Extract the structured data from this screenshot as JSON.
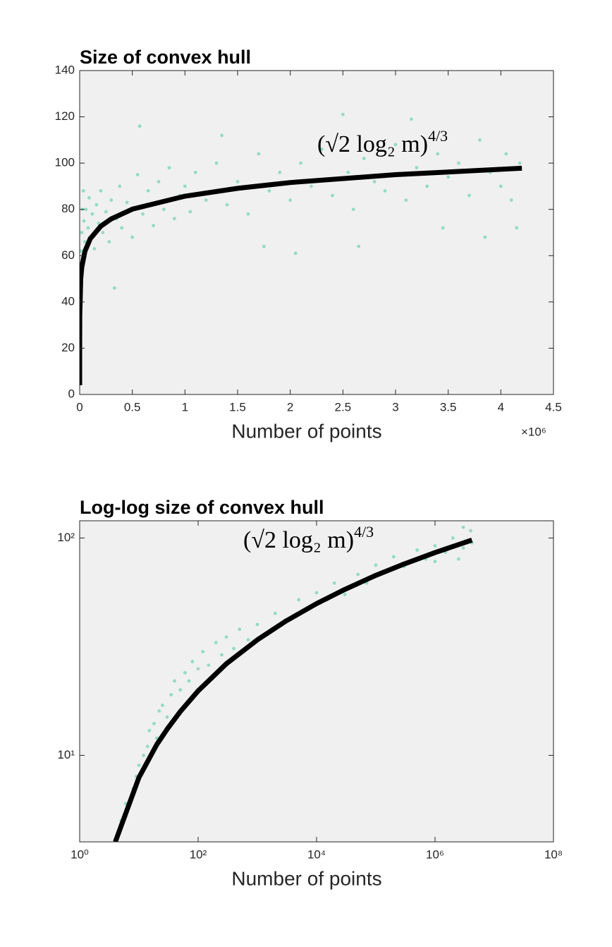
{
  "chart_data": [
    {
      "type": "scatter",
      "title": "Size of convex hull",
      "xlabel": "Number of points",
      "x_exponent_label": "×10⁶",
      "annotation": {
        "text": "(√2  log₂ m)",
        "superscript": "4/3"
      },
      "xlim": [
        0,
        4.5
      ],
      "xticks": [
        0,
        0.5,
        1,
        1.5,
        2,
        2.5,
        3,
        3.5,
        4,
        4.5
      ],
      "ylim": [
        0,
        140
      ],
      "yticks": [
        0,
        20,
        40,
        60,
        80,
        100,
        120,
        140
      ],
      "grid": false,
      "series": [
        {
          "mode": "markers",
          "color": "#93dbc5",
          "x": [
            0.01,
            0.02,
            0.03,
            0.04,
            0.05,
            0.06,
            0.07,
            0.08,
            0.09,
            0.1,
            0.12,
            0.14,
            0.16,
            0.18,
            0.2,
            0.22,
            0.25,
            0.28,
            0.3,
            0.005,
            0.015,
            0.025,
            0.035,
            0.045,
            0.003,
            0.008,
            0.012,
            0.35,
            0.38,
            0.4,
            0.45,
            0.5,
            0.55,
            0.57,
            0.6,
            0.65,
            0.7,
            0.75,
            0.8,
            0.85,
            0.9,
            0.95,
            1.0,
            1.05,
            1.1,
            1.2,
            1.3,
            1.35,
            1.4,
            1.5,
            1.6,
            1.7,
            1.75,
            1.8,
            1.9,
            2.0,
            2.05,
            2.1,
            2.2,
            2.3,
            2.4,
            2.5,
            2.55,
            2.6,
            2.65,
            2.7,
            2.8,
            2.9,
            3.0,
            3.1,
            3.15,
            3.2,
            3.3,
            3.4,
            3.45,
            3.5,
            3.6,
            3.7,
            3.8,
            3.85,
            3.9,
            4.0,
            4.05,
            4.1,
            4.15,
            4.18,
            0.33
          ],
          "values": [
            62,
            70,
            58,
            75,
            66,
            80,
            64,
            72,
            85,
            68,
            78,
            63,
            82,
            74,
            88,
            70,
            79,
            66,
            84,
            55,
            48,
            80,
            88,
            60,
            40,
            45,
            52,
            76,
            90,
            72,
            83,
            68,
            95,
            116,
            78,
            88,
            73,
            92,
            80,
            98,
            76,
            86,
            90,
            79,
            96,
            84,
            100,
            112,
            82,
            92,
            78,
            104,
            64,
            88,
            96,
            84,
            61,
            100,
            90,
            106,
            86,
            121,
            96,
            80,
            64,
            102,
            92,
            88,
            108,
            84,
            119,
            98,
            90,
            104,
            72,
            94,
            100,
            86,
            110,
            68,
            96,
            90,
            104,
            84,
            72,
            100,
            46
          ]
        },
        {
          "mode": "line",
          "color": "#000000",
          "x": [
            4e-06,
            0.0001,
            0.001,
            0.01,
            0.02,
            0.05,
            0.1,
            0.2,
            0.3,
            0.5,
            1,
            1.5,
            2,
            3,
            4.2
          ],
          "values": [
            4.0,
            19.8,
            34.0,
            49.9,
            55.0,
            61.9,
            67.3,
            72.7,
            75.9,
            80.1,
            85.7,
            89.1,
            91.6,
            95.0,
            97.8
          ]
        }
      ]
    },
    {
      "type": "scatter",
      "title": "Log-log size of convex hull",
      "xlabel": "Number of points",
      "annotation": {
        "text": "(√2  log₂ m)",
        "superscript": "4/3"
      },
      "xscale": "log",
      "yscale": "log",
      "xlim": [
        1,
        100000000
      ],
      "xticks": [
        {
          "value": 1,
          "label": "10⁰"
        },
        {
          "value": 100,
          "label": "10²"
        },
        {
          "value": 10000,
          "label": "10⁴"
        },
        {
          "value": 1000000,
          "label": "10⁶"
        },
        {
          "value": 100000000,
          "label": "10⁸"
        }
      ],
      "ylim": [
        4,
        120
      ],
      "yticks": [
        {
          "value": 10,
          "label": "10¹"
        },
        {
          "value": 100,
          "label": "10²"
        }
      ],
      "grid": false,
      "series": [
        {
          "mode": "markers",
          "color": "#93dbc5",
          "x": [
            4,
            5,
            6,
            7,
            8,
            9,
            10,
            12,
            14,
            15,
            18,
            20,
            22,
            25,
            30,
            35,
            40,
            50,
            60,
            70,
            80,
            100,
            120,
            150,
            200,
            250,
            300,
            400,
            500,
            700,
            1000,
            1500,
            2000,
            3000,
            5000,
            7000,
            10000,
            15000,
            20000,
            30000,
            50000,
            70000,
            100000,
            150000,
            200000,
            300000,
            500000,
            700000,
            1000000,
            1500000,
            2000000,
            3000000,
            4000000,
            4200000,
            3000000,
            2500000,
            1000000
          ],
          "values": [
            4,
            5,
            6,
            6,
            7,
            8,
            9,
            10,
            11,
            13,
            14,
            12,
            16,
            17,
            15,
            19,
            22,
            20,
            24,
            22,
            27,
            25,
            30,
            26,
            33,
            29,
            35,
            31,
            38,
            34,
            40,
            36,
            45,
            42,
            52,
            47,
            56,
            52,
            62,
            55,
            68,
            62,
            75,
            70,
            82,
            74,
            88,
            80,
            92,
            86,
            100,
            90,
            108,
            95,
            112,
            80,
            78
          ]
        },
        {
          "mode": "line",
          "color": "#000000",
          "x": [
            4,
            10,
            20,
            30,
            50,
            100,
            300,
            1000,
            3000,
            10000,
            30000,
            100000,
            300000,
            1000000,
            4200000
          ],
          "values": [
            4.0,
            7.9,
            11.2,
            13.2,
            15.9,
            19.8,
            26.4,
            34.0,
            41.4,
            49.9,
            58.0,
            67.3,
            75.9,
            85.7,
            97.8
          ]
        }
      ]
    }
  ]
}
